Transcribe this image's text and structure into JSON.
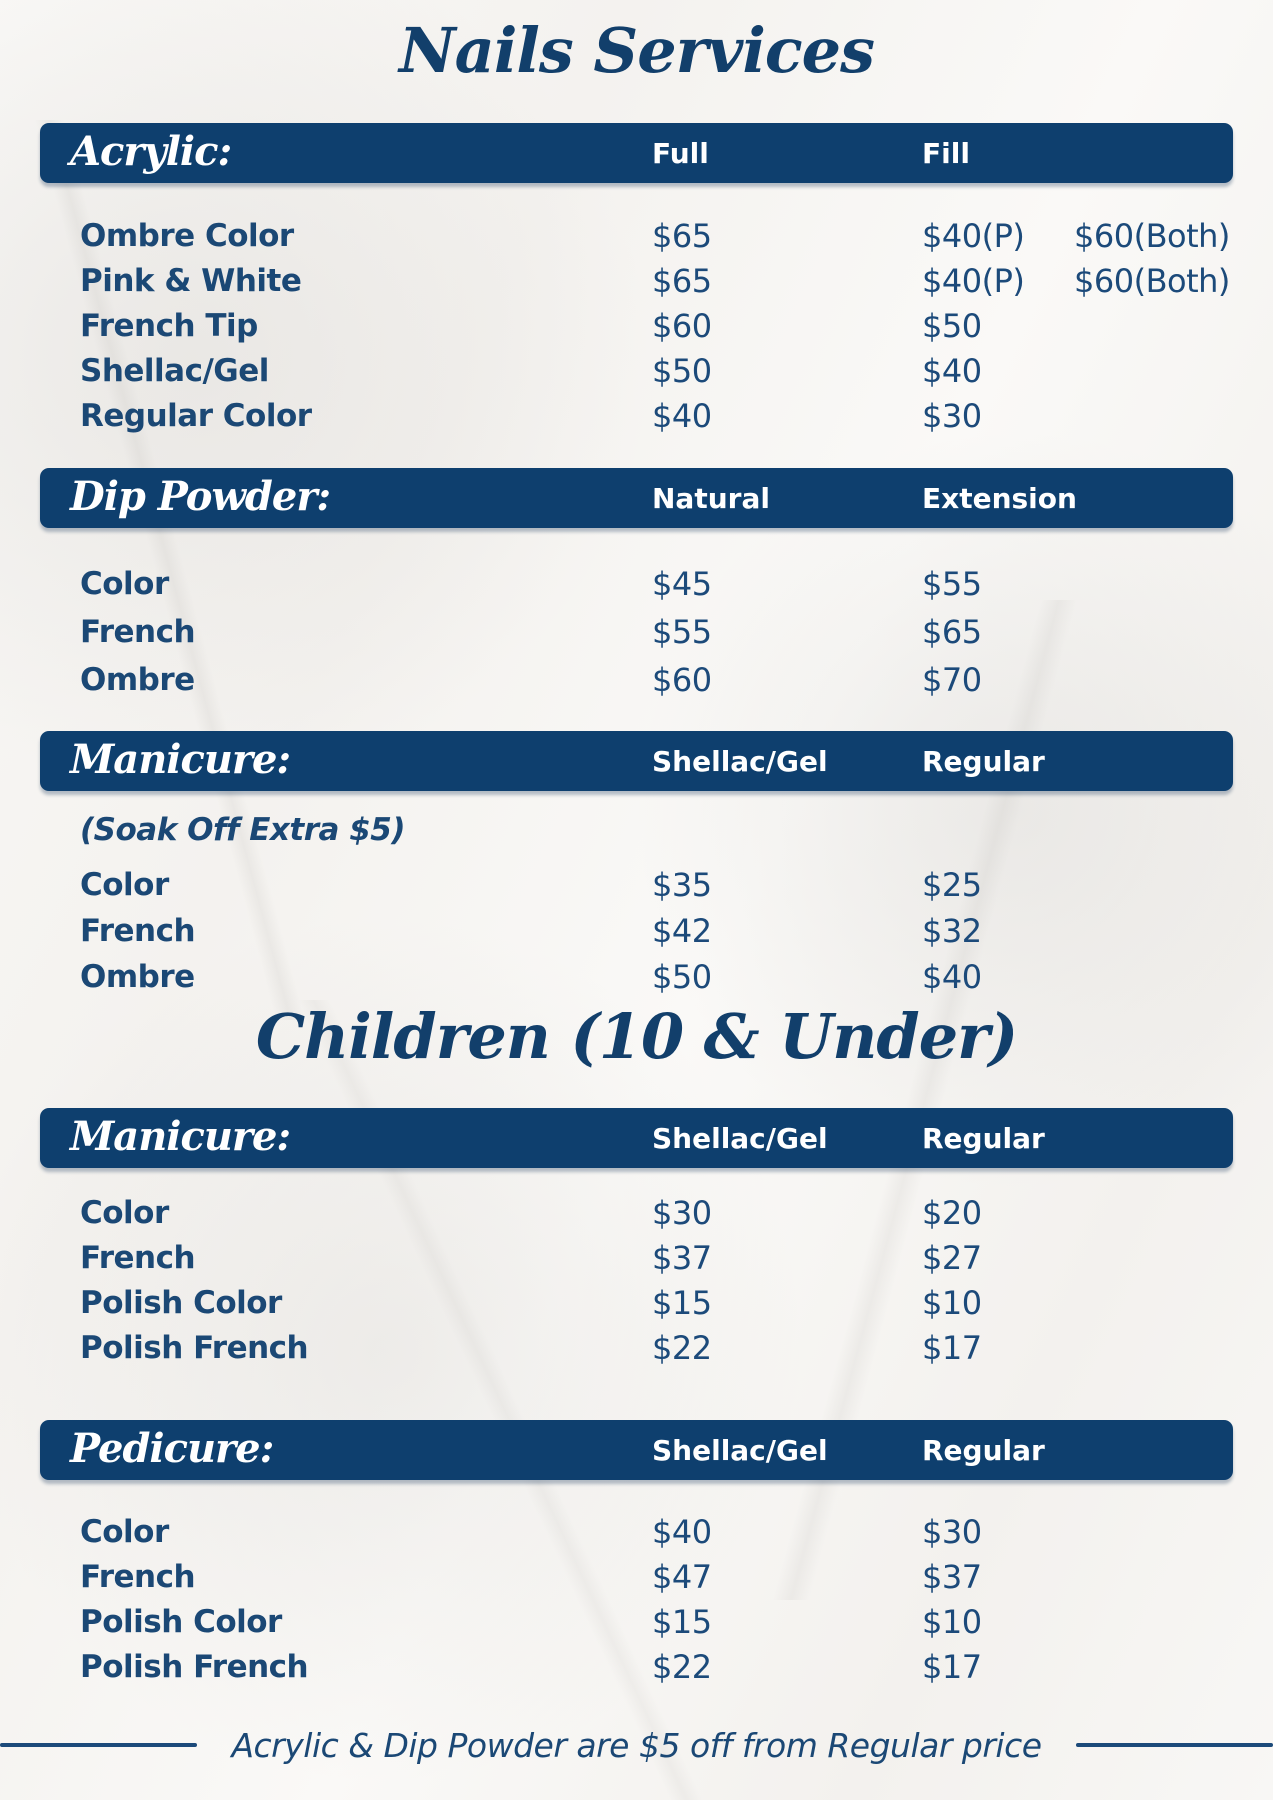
{
  "page": {
    "title": "Nails Services",
    "children_title": "Children (10 & Under)",
    "footer_note": "Acrylic & Dip Powder are $5 off from Regular price"
  },
  "colors": {
    "bar_navy": "#0E3F6E",
    "text_navy": "#1B4875",
    "background": "#F7F6F4"
  },
  "sections": {
    "acrylic": {
      "label": "Acrylic:",
      "col1": "Full",
      "col2": "Fill",
      "rows": [
        {
          "label": "Ombre Color",
          "price1": "$65",
          "price2": "$40(P)",
          "price3": "$60(Both)"
        },
        {
          "label": "Pink & White",
          "price1": "$65",
          "price2": "$40(P)",
          "price3": "$60(Both)"
        },
        {
          "label": "French Tip",
          "price1": "$60",
          "price2": "$50",
          "price3": ""
        },
        {
          "label": "Shellac/Gel",
          "price1": "$50",
          "price2": "$40",
          "price3": ""
        },
        {
          "label": "Regular Color",
          "price1": "$40",
          "price2": "$30",
          "price3": ""
        }
      ]
    },
    "dip_powder": {
      "label": "Dip Powder:",
      "col1": "Natural",
      "col2": "Extension",
      "rows": [
        {
          "label": "Color",
          "price1": "$45",
          "price2": "$55"
        },
        {
          "label": "French",
          "price1": "$55",
          "price2": "$65"
        },
        {
          "label": "Ombre",
          "price1": "$60",
          "price2": "$70"
        }
      ]
    },
    "manicure": {
      "label": "Manicure:",
      "col1": "Shellac/Gel",
      "col2": "Regular",
      "note": "(Soak Off Extra $5)",
      "rows": [
        {
          "label": "Color",
          "price1": "$35",
          "price2": "$25"
        },
        {
          "label": "French",
          "price1": "$42",
          "price2": "$32"
        },
        {
          "label": "Ombre",
          "price1": "$50",
          "price2": "$40"
        }
      ]
    },
    "children_manicure": {
      "label": "Manicure:",
      "col1": "Shellac/Gel",
      "col2": "Regular",
      "rows": [
        {
          "label": "Color",
          "price1": "$30",
          "price2": "$20"
        },
        {
          "label": "French",
          "price1": "$37",
          "price2": "$27"
        },
        {
          "label": "Polish Color",
          "price1": "$15",
          "price2": "$10"
        },
        {
          "label": "Polish French",
          "price1": "$22",
          "price2": "$17"
        }
      ]
    },
    "pedicure": {
      "label": "Pedicure:",
      "col1": "Shellac/Gel",
      "col2": "Regular",
      "rows": [
        {
          "label": "Color",
          "price1": "$40",
          "price2": "$30"
        },
        {
          "label": "French",
          "price1": "$47",
          "price2": "$37"
        },
        {
          "label": "Polish Color",
          "price1": "$15",
          "price2": "$10"
        },
        {
          "label": "Polish French",
          "price1": "$22",
          "price2": "$17"
        }
      ]
    }
  }
}
